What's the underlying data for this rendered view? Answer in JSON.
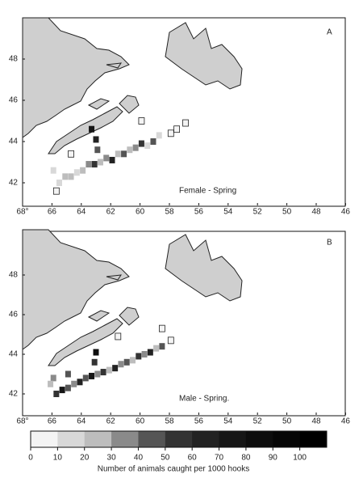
{
  "axes": {
    "x_ticks": [
      {
        "value": 68,
        "label": "68°"
      },
      66,
      64,
      62,
      60,
      58,
      56,
      54,
      52,
      50,
      48,
      46
    ],
    "y_ticks": [
      48,
      46,
      44,
      42
    ]
  },
  "panels": [
    {
      "label": "A",
      "caption": "Female - Spring",
      "cells": [
        [
          65.5,
          42.0,
          15
        ],
        [
          65.1,
          42.3,
          20
        ],
        [
          64.7,
          42.3,
          25
        ],
        [
          64.3,
          42.5,
          15
        ],
        [
          63.9,
          42.6,
          20
        ],
        [
          63.5,
          42.9,
          35
        ],
        [
          63.1,
          42.9,
          55
        ],
        [
          62.7,
          43.0,
          20
        ],
        [
          62.3,
          43.2,
          30
        ],
        [
          61.9,
          43.1,
          60
        ],
        [
          61.5,
          43.4,
          25
        ],
        [
          61.1,
          43.4,
          45
        ],
        [
          60.7,
          43.6,
          20
        ],
        [
          60.3,
          43.7,
          35
        ],
        [
          59.9,
          43.9,
          50
        ],
        [
          59.5,
          43.8,
          15
        ],
        [
          59.1,
          44.0,
          40
        ],
        [
          58.7,
          44.3,
          10
        ],
        [
          62.9,
          43.6,
          45
        ],
        [
          63.0,
          44.1,
          65
        ],
        [
          63.3,
          44.6,
          70
        ],
        [
          57.9,
          44.4,
          5
        ],
        [
          57.5,
          44.6,
          5
        ],
        [
          56.9,
          44.9,
          5
        ],
        [
          59.9,
          45.0,
          5
        ],
        [
          64.7,
          43.4,
          5
        ],
        [
          65.9,
          42.6,
          10
        ],
        [
          65.7,
          41.6,
          5
        ]
      ]
    },
    {
      "label": "B",
      "caption": "Male - Spring.",
      "cells": [
        [
          65.7,
          42.0,
          55
        ],
        [
          65.3,
          42.2,
          70
        ],
        [
          64.9,
          42.3,
          45
        ],
        [
          64.5,
          42.5,
          30
        ],
        [
          64.1,
          42.6,
          60
        ],
        [
          63.7,
          42.8,
          40
        ],
        [
          63.3,
          42.9,
          75
        ],
        [
          62.9,
          43.0,
          35
        ],
        [
          62.5,
          43.1,
          50
        ],
        [
          62.1,
          43.2,
          25
        ],
        [
          61.7,
          43.3,
          65
        ],
        [
          61.3,
          43.5,
          30
        ],
        [
          60.9,
          43.6,
          45
        ],
        [
          60.5,
          43.7,
          20
        ],
        [
          60.1,
          43.9,
          55
        ],
        [
          59.7,
          44.0,
          35
        ],
        [
          59.3,
          44.1,
          60
        ],
        [
          58.9,
          44.3,
          25
        ],
        [
          58.5,
          44.4,
          40
        ],
        [
          63.1,
          43.6,
          50
        ],
        [
          63.0,
          44.1,
          80
        ],
        [
          65.9,
          42.8,
          35
        ],
        [
          64.9,
          43.0,
          45
        ],
        [
          57.9,
          44.7,
          5
        ],
        [
          58.5,
          45.3,
          5
        ],
        [
          61.5,
          44.9,
          5
        ],
        [
          66.1,
          42.5,
          25
        ]
      ]
    }
  ],
  "legend": {
    "ticks": [
      0,
      10,
      20,
      30,
      40,
      50,
      60,
      70,
      80,
      90,
      100
    ],
    "max": 110,
    "caption": "Number of animals caught per 1000 hooks"
  }
}
